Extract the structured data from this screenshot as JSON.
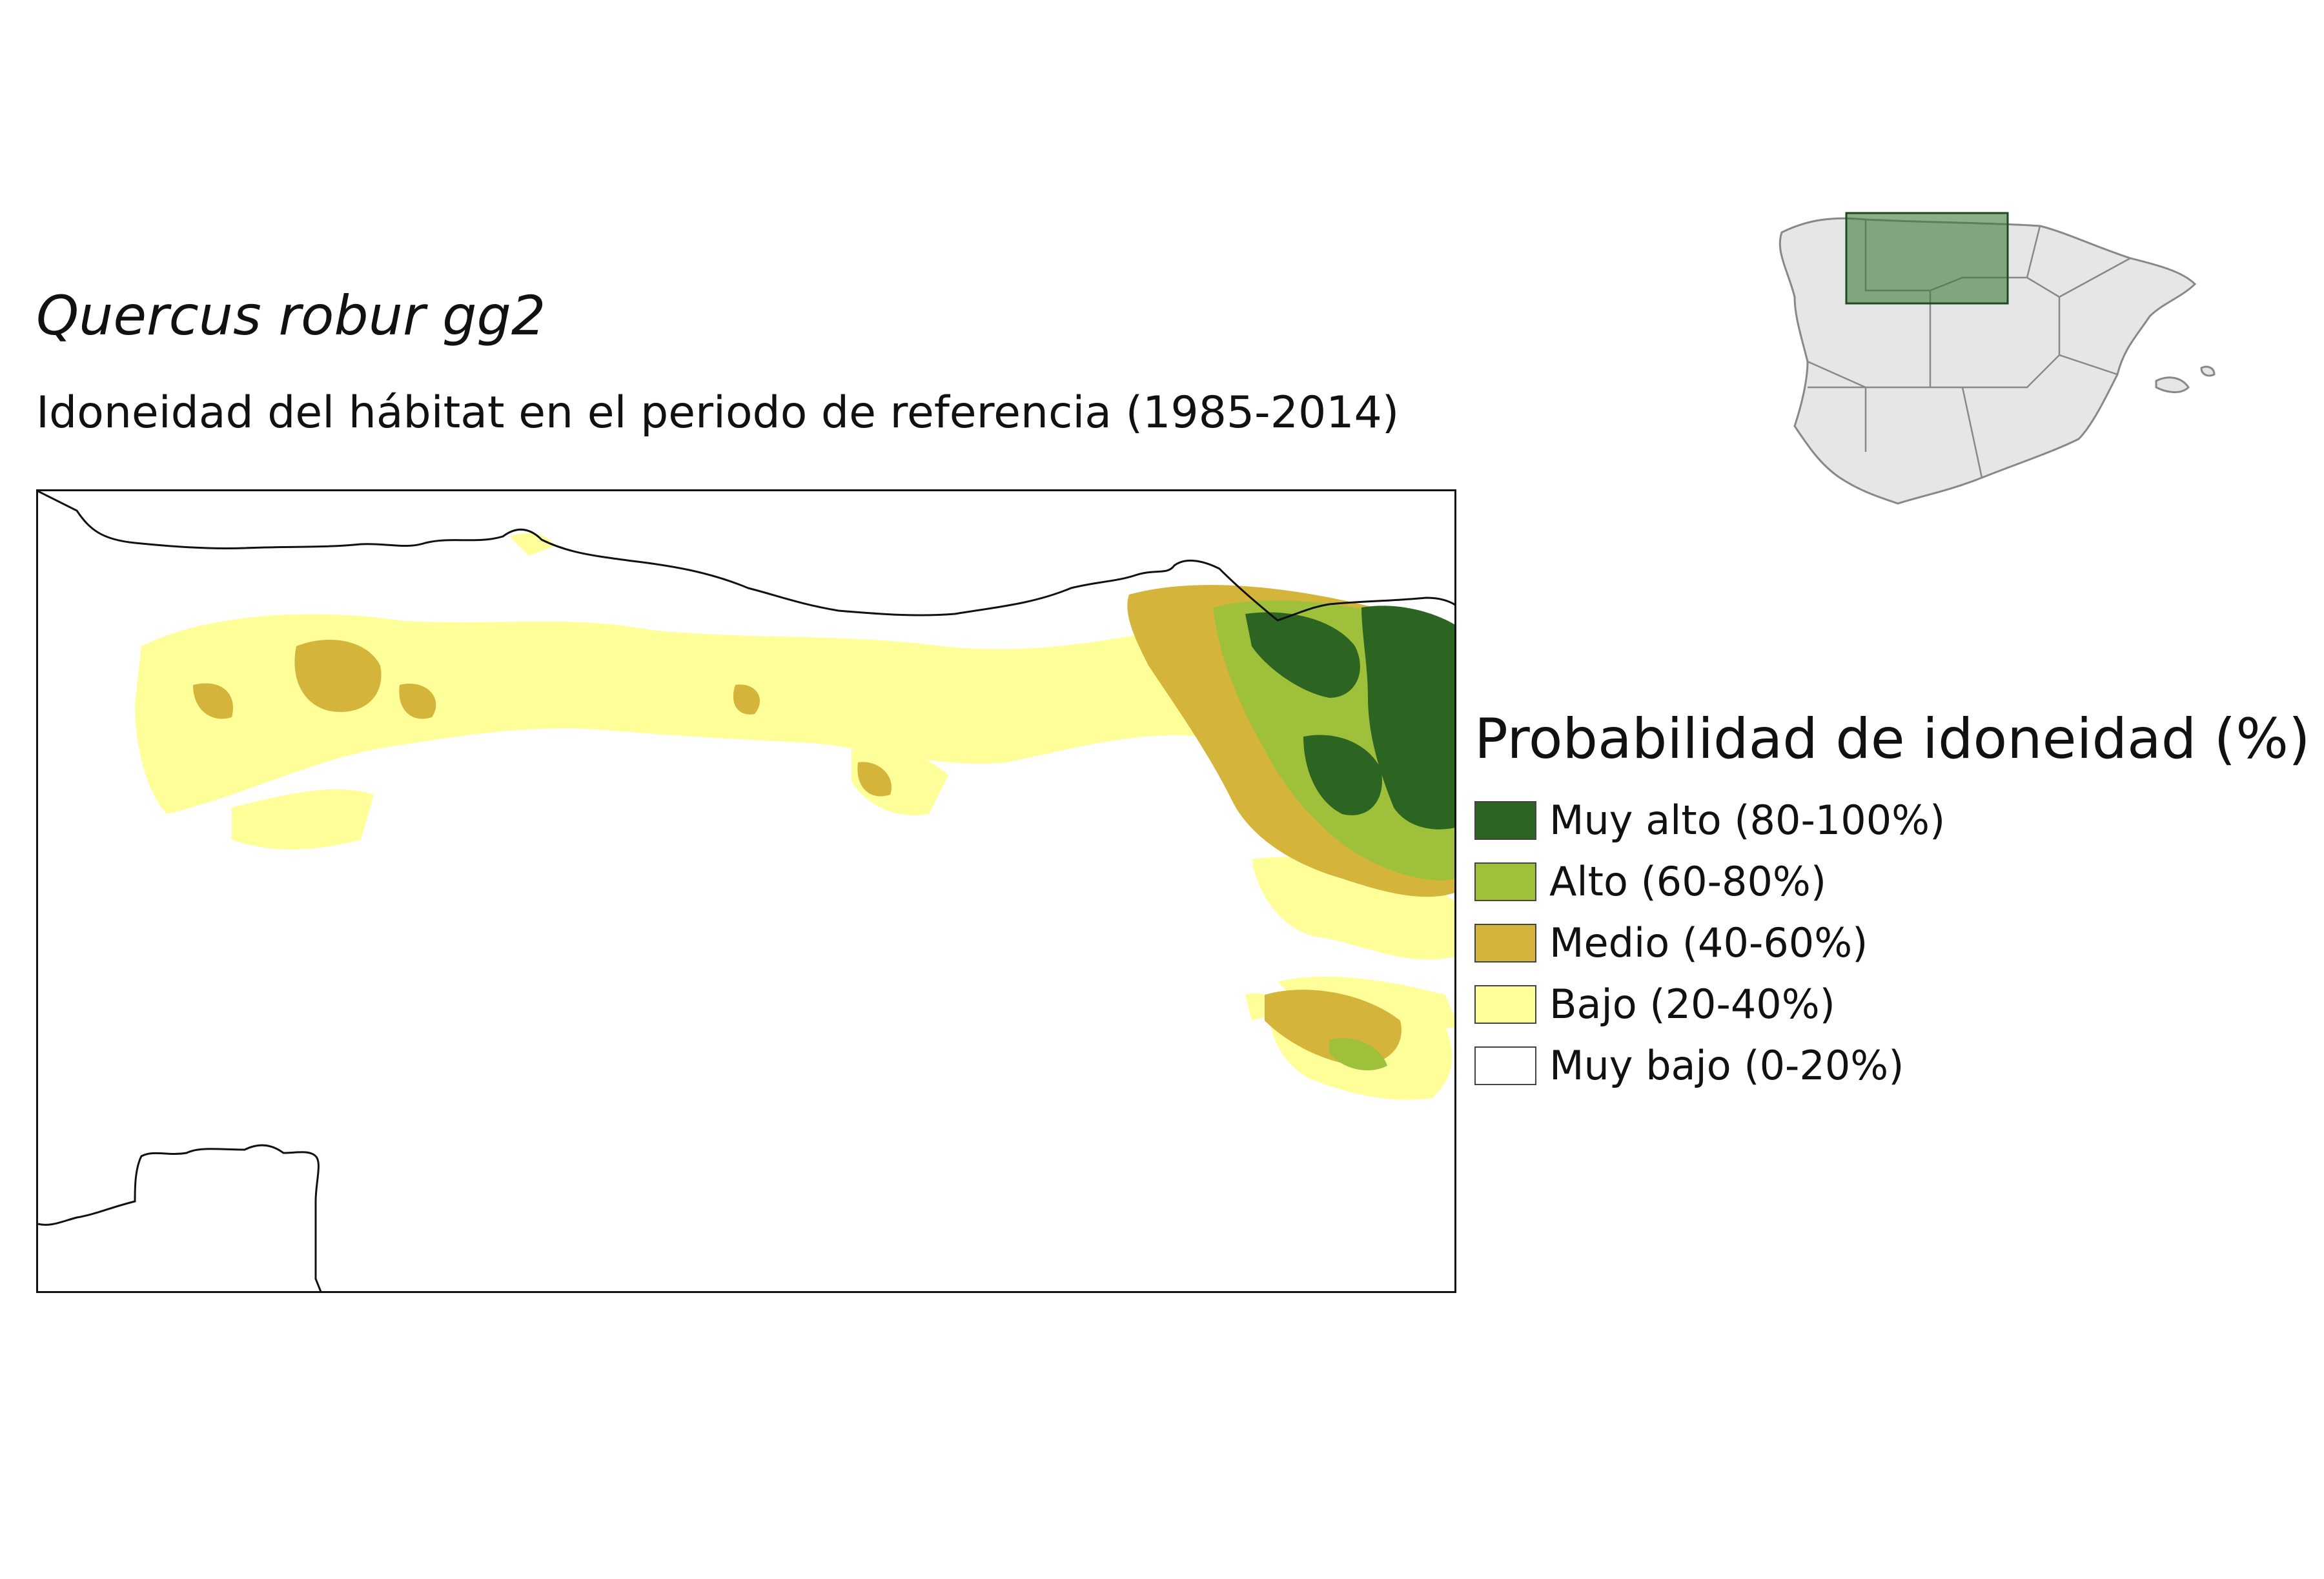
{
  "title": "Quercus robur gg2",
  "subtitle": "Idoneidad del hábitat en el periodo de referencia (1985-2014)",
  "legend": {
    "title": "Probabilidad de idoneidad (%)",
    "items": [
      {
        "label": "Muy alto (80-100%)",
        "color": "#2c6421"
      },
      {
        "label": "Alto (60-80%)",
        "color": "#9fc03a"
      },
      {
        "label": "Medio (40-60%)",
        "color": "#d4b43a"
      },
      {
        "label": "Bajo (20-40%)",
        "color": "#ffff99"
      },
      {
        "label": "Muy bajo (0-20%)",
        "color": "#ffffff"
      }
    ]
  },
  "colors": {
    "coastline": "#111111",
    "inset_fill": "#e6e6e6",
    "inset_border": "#888888",
    "inset_box_fill": "#3e7a3a",
    "inset_box_stroke": "#1e4a1c"
  }
}
